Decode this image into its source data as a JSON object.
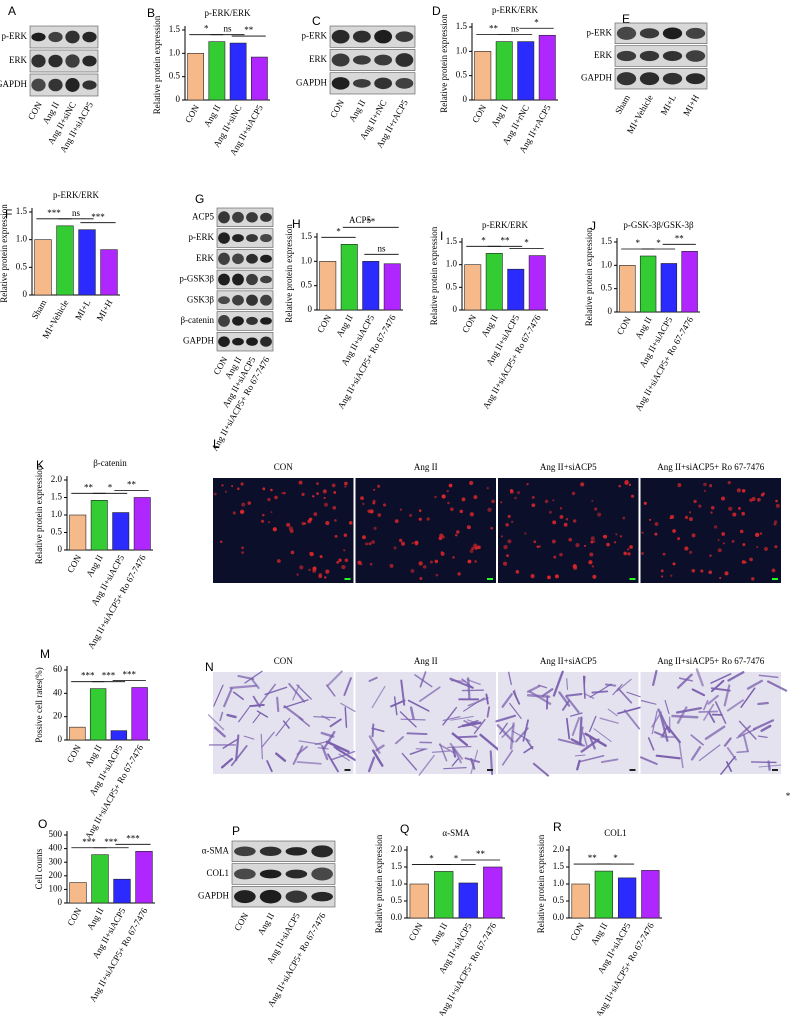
{
  "chart_data": [
    {
      "panel": "B",
      "type": "bar",
      "title": "p-ERK/ERK",
      "y_label": "Relative protein expression",
      "categories": [
        "CON",
        "Ang II",
        "Ang II+siNC",
        "Ang II+siACP5"
      ],
      "values": [
        1,
        1.25,
        1.22,
        0.92
      ],
      "colors": [
        "#f6b98a",
        "#33cc33",
        "#2b2bff",
        "#b026ff"
      ],
      "ylim": [
        0,
        1.5
      ],
      "yticks": [
        0,
        0.5,
        {
          "value": 1,
          "label": "1.0"
        },
        1.5
      ],
      "annotations": [
        {
          "text": "*",
          "between": [
            "CON",
            "Ang II"
          ]
        },
        {
          "text": "ns",
          "between": [
            "Ang II",
            "Ang II+siNC"
          ]
        },
        {
          "text": "**",
          "between": [
            "Ang II+siNC",
            "Ang II+siACP5"
          ]
        }
      ]
    },
    {
      "panel": "D",
      "type": "bar",
      "title": "p-ERK/ERK",
      "y_label": "Relative protein expression",
      "categories": [
        "CON",
        "Ang II",
        "Ang II+rNC",
        "Ang II+rACP5"
      ],
      "values": [
        1,
        1.2,
        1.2,
        1.33
      ],
      "colors": [
        "#f6b98a",
        "#33cc33",
        "#2b2bff",
        "#b026ff"
      ],
      "ylim": [
        0,
        1.5
      ],
      "yticks": [
        0,
        0.5,
        {
          "value": 1,
          "label": "1.0"
        },
        1.5
      ],
      "annotations": [
        {
          "text": "**",
          "between": [
            "CON",
            "Ang II"
          ]
        },
        {
          "text": "ns",
          "between": [
            "Ang II",
            "Ang II+rNC"
          ]
        },
        {
          "text": "*",
          "between": [
            "Ang II+rNC",
            "Ang II+rACP5"
          ]
        }
      ]
    },
    {
      "panel": "F",
      "type": "bar",
      "title": "p-ERK/ERK",
      "y_label": "Relative protein expression",
      "categories": [
        "Sham",
        "MI+Vehicle",
        "MI+L",
        "MI+H"
      ],
      "values": [
        1,
        1.25,
        1.18,
        0.82
      ],
      "colors": [
        "#f6b98a",
        "#33cc33",
        "#2b2bff",
        "#b026ff"
      ],
      "ylim": [
        0,
        1.5
      ],
      "yticks": [
        0,
        0.5,
        {
          "value": 1,
          "label": "1.0"
        },
        1.5
      ],
      "annotations": [
        {
          "text": "***",
          "between": [
            "Sham",
            "MI+Vehicle"
          ]
        },
        {
          "text": "ns",
          "between": [
            "MI+Vehicle",
            "MI+L"
          ]
        },
        {
          "text": "***",
          "between": [
            "MI+L",
            "MI+H"
          ]
        }
      ]
    },
    {
      "panel": "H",
      "type": "bar",
      "title": "ACP5",
      "y_label": "Relative protein expression",
      "categories": [
        "CON",
        "Ang II",
        "Ang II+siACP5",
        "Ang II+siACP5+ Ro 67-7476"
      ],
      "values": [
        1,
        1.35,
        1,
        0.95
      ],
      "colors": [
        "#f6b98a",
        "#33cc33",
        "#2b2bff",
        "#b026ff"
      ],
      "ylim": [
        0,
        1.5
      ],
      "yticks": [
        0,
        0.5,
        {
          "value": 1,
          "label": "1.0"
        },
        1.5
      ],
      "annotations": [
        {
          "text": "*",
          "between": [
            "CON",
            "Ang II"
          ]
        },
        {
          "text": "**",
          "between": [
            "Ang II",
            "Ang II+siACP5+ Ro 67-7476"
          ]
        },
        {
          "text": "ns",
          "between": [
            "Ang II+siACP5",
            "Ang II+siACP5+ Ro 67-7476"
          ]
        }
      ]
    },
    {
      "panel": "I",
      "type": "bar",
      "title": "p-ERK/ERK",
      "y_label": "Relative protein expression",
      "categories": [
        "CON",
        "Ang II",
        "Ang II+siACP5",
        "Ang II+siACP5+ Ro 67-7476"
      ],
      "values": [
        1,
        1.25,
        0.9,
        1.2
      ],
      "colors": [
        "#f6b98a",
        "#33cc33",
        "#2b2bff",
        "#b026ff"
      ],
      "ylim": [
        0,
        1.5
      ],
      "yticks": [
        0,
        0.5,
        {
          "value": 1,
          "label": "1.0"
        },
        1.5
      ],
      "annotations": [
        {
          "text": "*",
          "between": [
            "CON",
            "Ang II"
          ]
        },
        {
          "text": "**",
          "between": [
            "Ang II",
            "Ang II+siACP5"
          ]
        },
        {
          "text": "*",
          "between": [
            "Ang II+siACP5",
            "Ang II+siACP5+ Ro 67-7476"
          ]
        }
      ]
    },
    {
      "panel": "J",
      "type": "bar",
      "title": "p-GSK-3β/GSK-3β",
      "y_label": "Relative protein expression",
      "categories": [
        "CON",
        "Ang II",
        "Ang II+siACP5",
        "Ang II+siACP5+ Ro 67-7476"
      ],
      "values": [
        1,
        1.2,
        1.04,
        1.3
      ],
      "colors": [
        "#f6b98a",
        "#33cc33",
        "#2b2bff",
        "#b026ff"
      ],
      "ylim": [
        0,
        1.5
      ],
      "yticks": [
        0,
        0.5,
        {
          "value": 1,
          "label": "1.0"
        },
        1.5
      ],
      "annotations": [
        {
          "text": "*",
          "between": [
            "CON",
            "Ang II"
          ]
        },
        {
          "text": "*",
          "between": [
            "Ang II",
            "Ang II+siACP5"
          ]
        },
        {
          "text": "**",
          "between": [
            "Ang II+siACP5",
            "Ang II+siACP5+ Ro 67-7476"
          ]
        }
      ]
    },
    {
      "panel": "K",
      "type": "bar",
      "title": "β-catenin",
      "y_label": "Relative protein expression",
      "categories": [
        "CON",
        "Ang II",
        "Ang II+siACP5",
        "Ang II+siACP5+ Ro 67-7476"
      ],
      "values": [
        1,
        1.42,
        1.07,
        1.5
      ],
      "colors": [
        "#f6b98a",
        "#33cc33",
        "#2b2bff",
        "#b026ff"
      ],
      "ylim": [
        0,
        2
      ],
      "yticks": [
        0,
        0.5,
        {
          "value": 1,
          "label": "1.0"
        },
        1.5,
        {
          "value": 2,
          "label": "2.0"
        }
      ],
      "annotations": [
        {
          "text": "**",
          "between": [
            "CON",
            "Ang II"
          ]
        },
        {
          "text": "*",
          "between": [
            "Ang II",
            "Ang II+siACP5"
          ]
        },
        {
          "text": "**",
          "between": [
            "Ang II+siACP5",
            "Ang II+siACP5+ Ro 67-7476"
          ]
        }
      ]
    },
    {
      "panel": "M",
      "type": "bar",
      "y_label": "Possive cell rates(%)",
      "categories": [
        "CON",
        "Ang II",
        "Ang II+siACP5",
        "Ang II+siACP5+ Ro 67-7476"
      ],
      "values": [
        11,
        44,
        8,
        45
      ],
      "colors": [
        "#f6b98a",
        "#33cc33",
        "#2b2bff",
        "#b026ff"
      ],
      "ylim": [
        0,
        60
      ],
      "yticks": [
        0,
        20,
        40,
        60
      ],
      "annotations": [
        {
          "text": "***",
          "between": [
            "CON",
            "Ang II"
          ]
        },
        {
          "text": "***",
          "between": [
            "Ang II",
            "Ang II+siACP5"
          ]
        },
        {
          "text": "***",
          "between": [
            "Ang II+siACP5",
            "Ang II+siACP5+ Ro 67-7476"
          ]
        }
      ]
    },
    {
      "panel": "O",
      "type": "bar",
      "y_label": "Cell counts",
      "categories": [
        "CON",
        "Ang II",
        "Ang II+siACP5",
        "Ang II+siACP5+ Ro 67-7476"
      ],
      "values": [
        150,
        355,
        175,
        380
      ],
      "colors": [
        "#f6b98a",
        "#33cc33",
        "#2b2bff",
        "#b026ff"
      ],
      "ylim": [
        0,
        500
      ],
      "yticks": [
        0,
        100,
        200,
        300,
        400,
        500
      ],
      "annotations": [
        {
          "text": "***",
          "between": [
            "CON",
            "Ang II"
          ]
        },
        {
          "text": "***",
          "between": [
            "Ang II",
            "Ang II+siACP5"
          ]
        },
        {
          "text": "***",
          "between": [
            "Ang II+siACP5",
            "Ang II+siACP5+ Ro 67-7476"
          ]
        }
      ]
    },
    {
      "panel": "Q",
      "type": "bar",
      "title": "α-SMA",
      "y_label": "Relative protein expression",
      "categories": [
        "CON",
        "Ang II",
        "Ang II+siACP5",
        "Ang II+siACP5+ Ro 67-7476"
      ],
      "values": [
        1,
        1.37,
        1.03,
        1.5
      ],
      "colors": [
        "#f6b98a",
        "#33cc33",
        "#2b2bff",
        "#b026ff"
      ],
      "ylim": [
        0,
        2
      ],
      "yticks": [
        {
          "value": 0,
          "label": "0.0"
        },
        0.5,
        {
          "value": 1,
          "label": "1.0"
        },
        1.5,
        {
          "value": 2,
          "label": "2.0"
        }
      ],
      "annotations": [
        {
          "text": "*",
          "between": [
            "CON",
            "Ang II"
          ]
        },
        {
          "text": "*",
          "between": [
            "Ang II",
            "Ang II+siACP5"
          ]
        },
        {
          "text": "**",
          "between": [
            "Ang II+siACP5",
            "Ang II+siACP5+ Ro 67-7476"
          ]
        }
      ]
    },
    {
      "panel": "R",
      "type": "bar",
      "title": "COL1",
      "y_label": "Relative protein expression",
      "categories": [
        "CON",
        "Ang II",
        "Ang II+siACP5",
        "Ang II+siACP5+ Ro 67-7476"
      ],
      "values": [
        1,
        1.38,
        1.18,
        1.4
      ],
      "colors": [
        "#f6b98a",
        "#33cc33",
        "#2b2bff",
        "#b026ff"
      ],
      "ylim": [
        0,
        2
      ],
      "yticks": [
        {
          "value": 0,
          "label": "0.0"
        },
        0.5,
        {
          "value": 1,
          "label": "1.0"
        },
        1.5,
        {
          "value": 2,
          "label": "2.0"
        }
      ],
      "annotations": [
        {
          "text": "**",
          "between": [
            "CON",
            "Ang II"
          ]
        },
        {
          "text": "*",
          "between": [
            "Ang II",
            "Ang II+siACP5"
          ]
        }
      ]
    }
  ],
  "blots": [
    {
      "panel": "A",
      "rows": [
        "p-ERK",
        "ERK",
        "GAPDH"
      ],
      "lanes": [
        "CON",
        "Ang II",
        "Ang II+siNC",
        "Ang II+siACP5"
      ]
    },
    {
      "panel": "C",
      "rows": [
        "p-ERK",
        "ERK",
        "GAPDH"
      ],
      "lanes": [
        "CON",
        "Ang II",
        "Ang II+rNC",
        "Ang II+rACP5"
      ]
    },
    {
      "panel": "E",
      "rows": [
        "p-ERK",
        "ERK",
        "GAPDH"
      ],
      "lanes": [
        "Sham",
        "MI+Vehicle",
        "MI+L",
        "MI+H"
      ]
    },
    {
      "panel": "G",
      "rows": [
        "ACP5",
        "p-ERK",
        "ERK",
        "p-GSK3β",
        "GSK3β",
        "β-catenin",
        "GAPDH"
      ],
      "lanes": [
        "CON",
        "Ang II",
        "Ang II+siACP5",
        "Ang II+siACP5+ Ro 67-7476"
      ]
    },
    {
      "panel": "P",
      "rows": [
        "α-SMA",
        "COL1",
        "GAPDH"
      ],
      "lanes": [
        "CON",
        "Ang II",
        "Ang II+siACP5",
        "Ang II+siACP5+ Ro 67-7476"
      ]
    }
  ],
  "micrographs": [
    {
      "panel": "L",
      "titles": [
        "CON",
        "Ang II",
        "Ang II+siACP5",
        "Ang II+siACP5+ Ro 67-7476"
      ]
    },
    {
      "panel": "N",
      "titles": [
        "CON",
        "Ang II",
        "Ang II+siACP5",
        "Ang II+siACP5+ Ro 67-7476"
      ]
    }
  ],
  "stray_mark": "*"
}
